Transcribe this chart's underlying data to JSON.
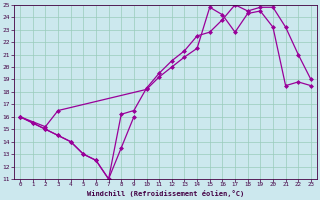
{
  "bg_color": "#cce8ee",
  "line_color": "#990099",
  "grid_color": "#99ccbb",
  "xlabel": "Windchill (Refroidissement éolien,°C)",
  "xlim": [
    -0.5,
    23.5
  ],
  "ylim": [
    11,
    25
  ],
  "xticks": [
    0,
    1,
    2,
    3,
    4,
    5,
    6,
    7,
    8,
    9,
    10,
    11,
    12,
    13,
    14,
    15,
    16,
    17,
    18,
    19,
    20,
    21,
    22,
    23
  ],
  "yticks": [
    11,
    12,
    13,
    14,
    15,
    16,
    17,
    18,
    19,
    20,
    21,
    22,
    23,
    24,
    25
  ],
  "line1_x": [
    0,
    1,
    2,
    3,
    4,
    5,
    6,
    7,
    8,
    9
  ],
  "line1_y": [
    16.0,
    15.5,
    15.0,
    14.5,
    14.0,
    13.0,
    12.5,
    11.0,
    13.5,
    16.0
  ],
  "line2_x": [
    0,
    1,
    2,
    3,
    4,
    5,
    6,
    7,
    8,
    9,
    10,
    11,
    12,
    13,
    14,
    15,
    16,
    17,
    18,
    19,
    20,
    21,
    22,
    23
  ],
  "line2_y": [
    16.0,
    15.5,
    15.0,
    14.5,
    14.0,
    13.0,
    12.5,
    11.0,
    16.2,
    16.5,
    18.3,
    19.5,
    20.5,
    21.3,
    22.5,
    22.8,
    23.8,
    25.0,
    24.5,
    24.8,
    24.8,
    23.2,
    21.0,
    19.0
  ],
  "line3_x": [
    0,
    2,
    3,
    10,
    11,
    12,
    13,
    14,
    15,
    16,
    17,
    18,
    19,
    20,
    21,
    22,
    23
  ],
  "line3_y": [
    16.0,
    15.2,
    16.5,
    18.2,
    19.2,
    20.0,
    20.8,
    21.5,
    24.8,
    24.2,
    22.8,
    24.3,
    24.5,
    23.2,
    18.5,
    18.8,
    18.5
  ],
  "marker": "D",
  "markersize": 2.0,
  "linewidth": 0.9
}
